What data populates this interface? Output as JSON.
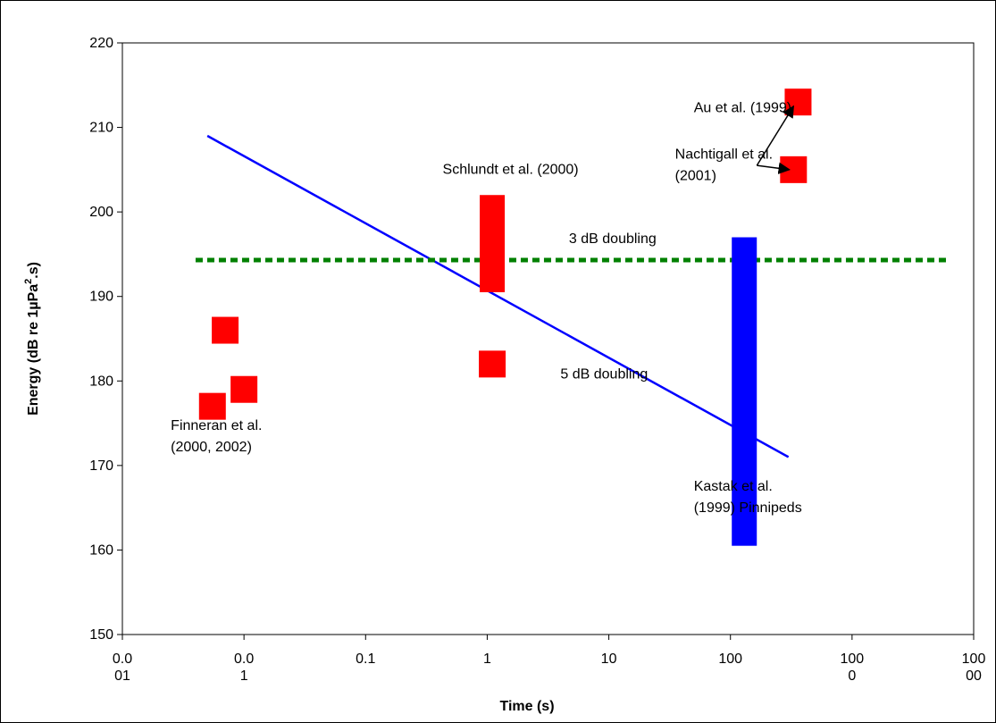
{
  "chart_data": {
    "type": "scatter",
    "xscale": "log",
    "xlim": [
      0.001,
      10000
    ],
    "ylim": [
      150,
      220
    ],
    "xlabel": "Time (s)",
    "ylabel": "Energy (dB re 1µPa",
    "ylabel_sup": "2",
    "ylabel_tail": ".s)",
    "x_ticks": [
      {
        "value": 0.001,
        "line1": "0.0",
        "line2": "01"
      },
      {
        "value": 0.01,
        "line1": "0.0",
        "line2": "1"
      },
      {
        "value": 0.1,
        "line1": "0.1",
        "line2": ""
      },
      {
        "value": 1,
        "line1": "1",
        "line2": ""
      },
      {
        "value": 10,
        "line1": "10",
        "line2": ""
      },
      {
        "value": 100,
        "line1": "100",
        "line2": ""
      },
      {
        "value": 1000,
        "line1": "100",
        "line2": "0"
      },
      {
        "value": 10000,
        "line1": "100",
        "line2": "00"
      }
    ],
    "y_ticks": [
      150,
      160,
      170,
      180,
      190,
      200,
      210,
      220
    ],
    "grid": false,
    "colors": {
      "points": "#ff0000",
      "trend": "#0000ff",
      "reference": "#008000",
      "kastak_bar": "#0000ff"
    },
    "points": [
      {
        "x": 0.0055,
        "y": 177
      },
      {
        "x": 0.007,
        "y": 186
      },
      {
        "x": 0.01,
        "y": 179
      },
      {
        "x": 1.1,
        "y": 182
      },
      {
        "x": 330,
        "y": 205
      },
      {
        "x": 360,
        "y": 213
      }
    ],
    "range_bars": [
      {
        "x": 1.1,
        "y_low": 190.5,
        "y_high": 202,
        "color": "#ff0000"
      },
      {
        "x": 130,
        "y_low": 160.5,
        "y_high": 197,
        "color": "#0000ff"
      }
    ],
    "lines": [
      {
        "name": "5 dB doubling",
        "x": [
          0.005,
          300
        ],
        "y": [
          209,
          171
        ],
        "color": "#0000ff",
        "style": "solid"
      },
      {
        "name": "3 dB doubling",
        "x": [
          0.004,
          6000
        ],
        "y": [
          194.3,
          194.3
        ],
        "color": "#008000",
        "style": "dotted"
      }
    ],
    "annotations": [
      {
        "lines": [
          "Finneran et al.",
          "(2000, 2002)"
        ],
        "x": 0.0025,
        "y": 174.2,
        "anchor": "start"
      },
      {
        "lines": [
          "Schlundt et al. (2000)"
        ],
        "x": 0.43,
        "y": 204.5,
        "anchor": "start"
      },
      {
        "lines": [
          "3 dB doubling"
        ],
        "x": 4.7,
        "y": 196.3,
        "anchor": "start"
      },
      {
        "lines": [
          "5 dB doubling"
        ],
        "x": 4.0,
        "y": 180.3,
        "anchor": "start"
      },
      {
        "lines": [
          "Kastak et al.",
          "(1999) Pinnipeds"
        ],
        "x": 50,
        "y": 167,
        "anchor": "start"
      },
      {
        "lines": [
          "Au et al. (1999)"
        ],
        "x": 50,
        "y": 211.8,
        "anchor": "start"
      },
      {
        "lines": [
          "Nachtigall et al.",
          "(2001)"
        ],
        "x": 35,
        "y": 206.3,
        "anchor": "start"
      }
    ],
    "arrows": [
      {
        "from": [
          165,
          205.5
        ],
        "to": [
          330,
          212.5
        ]
      },
      {
        "from": [
          165,
          205.5
        ],
        "to": [
          305,
          205
        ]
      }
    ]
  }
}
